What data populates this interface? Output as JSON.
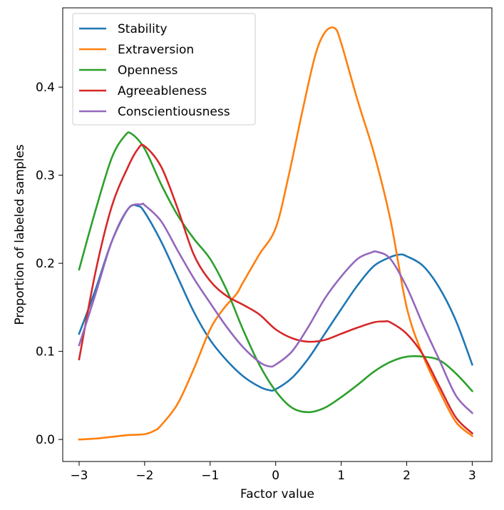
{
  "chart_data": {
    "type": "line",
    "title": "",
    "xlabel": "Factor value",
    "ylabel": "Proportion of labeled samples",
    "xlim": [
      -3.25,
      3.3
    ],
    "ylim": [
      -0.025,
      0.49
    ],
    "xticks": [
      -3,
      -2,
      -1,
      0,
      1,
      2,
      3
    ],
    "xtick_labels": [
      "−3",
      "−2",
      "−1",
      "0",
      "1",
      "2",
      "3"
    ],
    "yticks": [
      0.0,
      0.1,
      0.2,
      0.3,
      0.4
    ],
    "ytick_labels": [
      "0.0",
      "0.1",
      "0.2",
      "0.3",
      "0.4"
    ],
    "grid": false,
    "legend": "top-left",
    "series": [
      {
        "name": "Stability",
        "color": "#1f77b4",
        "x": [
          -3,
          -2.75,
          -2.5,
          -2.25,
          -2.1,
          -2,
          -1.75,
          -1.5,
          -1.25,
          -1,
          -0.75,
          -0.5,
          -0.25,
          -0.1,
          0,
          0.25,
          0.5,
          0.75,
          1,
          1.25,
          1.5,
          1.75,
          1.9,
          2,
          2.25,
          2.5,
          2.75,
          3
        ],
        "y": [
          0.12,
          0.17,
          0.225,
          0.262,
          0.265,
          0.258,
          0.225,
          0.185,
          0.145,
          0.113,
          0.09,
          0.072,
          0.06,
          0.056,
          0.057,
          0.07,
          0.092,
          0.12,
          0.148,
          0.175,
          0.197,
          0.207,
          0.21,
          0.208,
          0.197,
          0.172,
          0.135,
          0.085
        ]
      },
      {
        "name": "Extraversion",
        "color": "#ff7f0e",
        "x": [
          -3,
          -2.75,
          -2.5,
          -2.25,
          -2,
          -1.85,
          -1.75,
          -1.5,
          -1.25,
          -1,
          -0.8,
          -0.6,
          -0.5,
          -0.25,
          0,
          0.2,
          0.4,
          0.6,
          0.75,
          0.9,
          1,
          1.25,
          1.5,
          1.75,
          2,
          2.25,
          2.5,
          2.75,
          3
        ],
        "y": [
          0.0,
          0.001,
          0.003,
          0.005,
          0.006,
          0.01,
          0.016,
          0.04,
          0.08,
          0.125,
          0.148,
          0.165,
          0.178,
          0.21,
          0.24,
          0.3,
          0.37,
          0.435,
          0.462,
          0.467,
          0.45,
          0.385,
          0.325,
          0.25,
          0.15,
          0.095,
          0.055,
          0.02,
          0.004
        ]
      },
      {
        "name": "Openness",
        "color": "#2ca02c",
        "x": [
          -3,
          -2.75,
          -2.5,
          -2.3,
          -2.2,
          -2,
          -1.75,
          -1.5,
          -1.25,
          -1,
          -0.75,
          -0.5,
          -0.25,
          0,
          0.25,
          0.5,
          0.75,
          1,
          1.25,
          1.5,
          1.75,
          2,
          2.25,
          2.5,
          2.75,
          3
        ],
        "y": [
          0.193,
          0.26,
          0.32,
          0.345,
          0.347,
          0.33,
          0.29,
          0.255,
          0.228,
          0.205,
          0.17,
          0.125,
          0.085,
          0.055,
          0.036,
          0.031,
          0.036,
          0.048,
          0.062,
          0.077,
          0.088,
          0.094,
          0.094,
          0.09,
          0.075,
          0.055
        ]
      },
      {
        "name": "Agreeableness",
        "color": "#d62728",
        "x": [
          -3,
          -2.75,
          -2.5,
          -2.25,
          -2.1,
          -2,
          -1.75,
          -1.5,
          -1.25,
          -1,
          -0.75,
          -0.5,
          -0.25,
          0,
          0.25,
          0.5,
          0.75,
          1,
          1.25,
          1.5,
          1.65,
          1.75,
          2,
          2.25,
          2.5,
          2.75,
          3
        ],
        "y": [
          0.091,
          0.19,
          0.265,
          0.31,
          0.33,
          0.333,
          0.31,
          0.263,
          0.21,
          0.18,
          0.163,
          0.153,
          0.142,
          0.125,
          0.115,
          0.111,
          0.113,
          0.12,
          0.127,
          0.133,
          0.134,
          0.133,
          0.12,
          0.096,
          0.06,
          0.025,
          0.007
        ]
      },
      {
        "name": "Conscientiousness",
        "color": "#9467bd",
        "x": [
          -3,
          -2.75,
          -2.5,
          -2.25,
          -2.05,
          -2,
          -1.75,
          -1.5,
          -1.25,
          -1,
          -0.75,
          -0.5,
          -0.25,
          -0.1,
          0,
          0.25,
          0.5,
          0.75,
          1,
          1.25,
          1.45,
          1.55,
          1.75,
          2,
          2.25,
          2.5,
          2.75,
          3
        ],
        "y": [
          0.107,
          0.165,
          0.225,
          0.262,
          0.267,
          0.266,
          0.248,
          0.215,
          0.183,
          0.155,
          0.128,
          0.105,
          0.088,
          0.083,
          0.085,
          0.1,
          0.128,
          0.16,
          0.185,
          0.205,
          0.212,
          0.213,
          0.205,
          0.173,
          0.13,
          0.09,
          0.05,
          0.03
        ]
      }
    ]
  }
}
